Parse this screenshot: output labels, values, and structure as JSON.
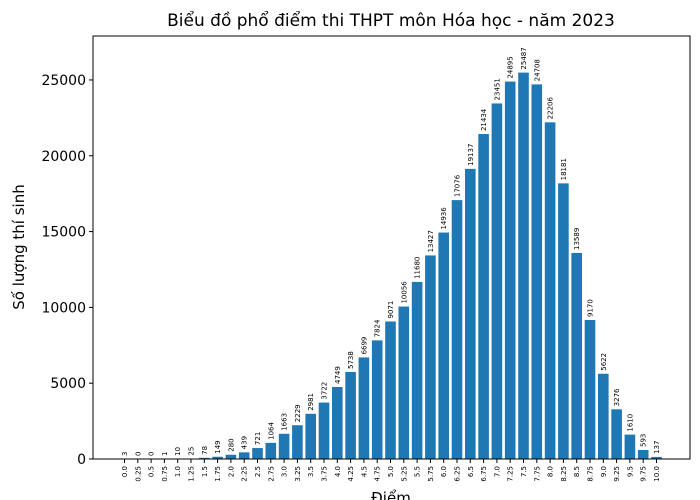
{
  "chart_data": {
    "type": "bar",
    "title": "Biểu đồ phổ điểm thi THPT môn Hóa học - năm 2023",
    "xlabel": "Điểm",
    "ylabel": "Số lượng thí sinh",
    "ylim": [
      0,
      27900
    ],
    "yticks": [
      "0",
      "5000",
      "10000",
      "15000",
      "20000",
      "25000"
    ],
    "ytick_values": [
      0,
      5000,
      10000,
      15000,
      20000,
      25000
    ],
    "bar_color": "#1f77b4",
    "grid": false,
    "categories": [
      "0.0",
      "0.25",
      "0.5",
      "0.75",
      "1.0",
      "1.25",
      "1.5",
      "1.75",
      "2.0",
      "2.25",
      "2.5",
      "2.75",
      "3.0",
      "3.25",
      "3.5",
      "3.75",
      "4.0",
      "4.25",
      "4.5",
      "4.75",
      "5.0",
      "5.25",
      "5.5",
      "5.75",
      "6.0",
      "6.25",
      "6.5",
      "6.75",
      "7.0",
      "7.25",
      "7.5",
      "7.75",
      "8.0",
      "8.25",
      "8.5",
      "8.75",
      "9.0",
      "9.25",
      "9.5",
      "9.75",
      "10.0"
    ],
    "values": [
      3,
      0,
      0,
      1,
      10,
      25,
      78,
      149,
      280,
      439,
      721,
      1064,
      1663,
      2229,
      2981,
      3722,
      4749,
      5738,
      6699,
      7824,
      9071,
      10056,
      11680,
      13427,
      14936,
      17076,
      19137,
      21434,
      23451,
      24895,
      25487,
      24708,
      22206,
      18181,
      13589,
      9170,
      5622,
      3276,
      1610,
      593,
      137
    ]
  }
}
